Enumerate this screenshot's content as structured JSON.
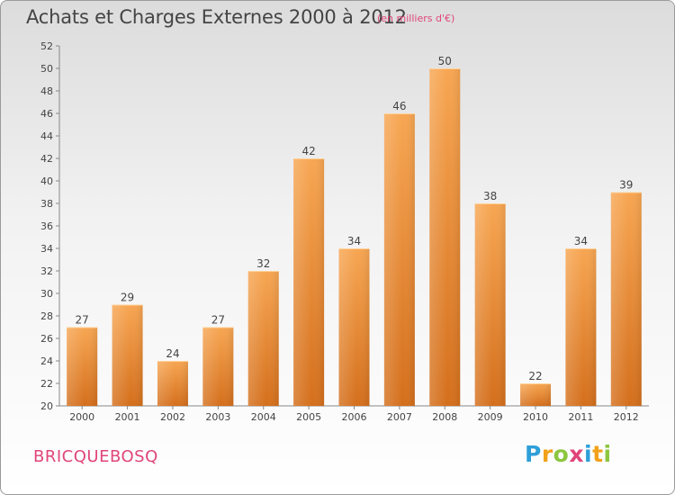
{
  "header": {
    "title": "Achats et Charges Externes 2000 à 2012",
    "subtitle": "(en milliers d'€)"
  },
  "footer": {
    "commune": "BRICQUEBOSQ",
    "logo_letters": [
      {
        "char": "P",
        "color": "#2e9fd8"
      },
      {
        "char": "r",
        "color": "#f2a11a"
      },
      {
        "char": "o",
        "color": "#8cc63f"
      },
      {
        "char": "x",
        "color": "#e0457b"
      },
      {
        "char": "i",
        "color": "#2e9fd8"
      },
      {
        "char": "t",
        "color": "#f2a11a"
      },
      {
        "char": "i",
        "color": "#8cc63f"
      }
    ]
  },
  "colors": {
    "bar_top": "#f7a652",
    "bar_bottom": "#d46f1c",
    "axis_text": "#444444",
    "accent": "#e0457b"
  },
  "chart_data": {
    "type": "bar",
    "categories": [
      "2000",
      "2001",
      "2002",
      "2003",
      "2004",
      "2005",
      "2006",
      "2007",
      "2008",
      "2009",
      "2010",
      "2011",
      "2012"
    ],
    "values": [
      27,
      29,
      24,
      27,
      32,
      42,
      34,
      46,
      50,
      38,
      22,
      34,
      39
    ],
    "ylim": [
      20,
      52
    ],
    "yticks": [
      20,
      22,
      24,
      26,
      28,
      30,
      32,
      34,
      36,
      38,
      40,
      42,
      44,
      46,
      48,
      50,
      52
    ],
    "grid": false
  }
}
